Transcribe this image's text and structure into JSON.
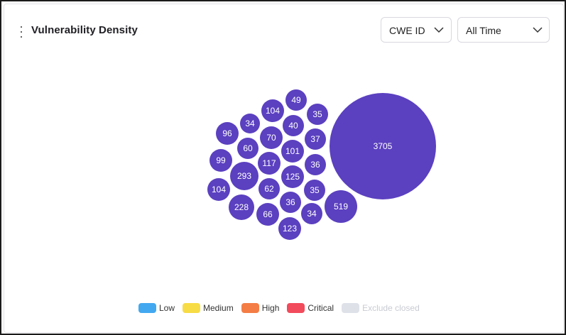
{
  "widget": {
    "title": "Vulnerability Density",
    "more_icon": "kebab-vertical-icon"
  },
  "filters": {
    "group_by": {
      "value": "CWE ID",
      "icon": "chevron-down-icon"
    },
    "time_range": {
      "value": "All Time",
      "icon": "chevron-down-icon"
    }
  },
  "chart_data": {
    "type": "bubble",
    "bubble_color": "#5b40c0",
    "values": [
      3705,
      519,
      293,
      228,
      125,
      123,
      117,
      104,
      104,
      101,
      99,
      96,
      70,
      66,
      62,
      60,
      49,
      40,
      37,
      36,
      36,
      35,
      35,
      34,
      34
    ]
  },
  "legend": [
    {
      "label": "Low",
      "color": "#42a8f0",
      "enabled": true
    },
    {
      "label": "Medium",
      "color": "#f7dc45",
      "enabled": true
    },
    {
      "label": "High",
      "color": "#f47d45",
      "enabled": true
    },
    {
      "label": "Critical",
      "color": "#f24b5b",
      "enabled": true
    },
    {
      "label": "Exclude closed",
      "color": "#dee1e8",
      "enabled": false
    }
  ]
}
